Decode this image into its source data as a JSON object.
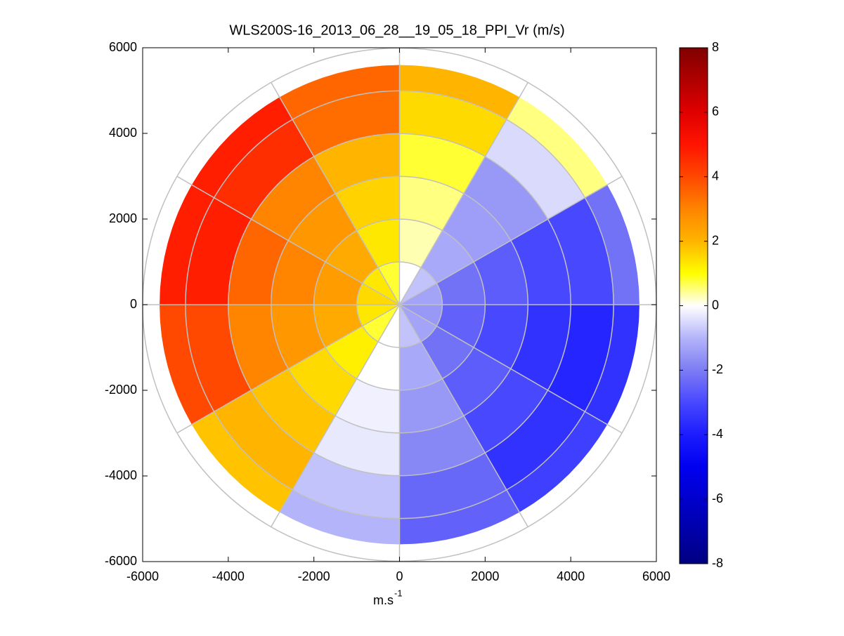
{
  "chart_data": {
    "type": "ppi",
    "title": "WLS200S-16_2013_06_28__19_05_18_PPI_Vr (m/s)",
    "xlabel": {
      "text": "m.s",
      "superscript": "-1"
    },
    "xlim": [
      -6000,
      6000
    ],
    "ylim": [
      -6000,
      6000
    ],
    "xticks": [
      -6000,
      -4000,
      -2000,
      0,
      2000,
      4000,
      6000
    ],
    "yticks": [
      -6000,
      -4000,
      -2000,
      0,
      2000,
      4000,
      6000
    ],
    "r_edges": [
      0,
      1000,
      2000,
      3000,
      4000,
      5000,
      5600
    ],
    "az_edges": [
      0,
      30,
      60,
      90,
      120,
      150,
      180,
      210,
      240,
      270,
      300,
      330,
      360
    ],
    "values": [
      [
        0,
        -0.8,
        -1.3,
        -1.5,
        -1.3,
        -0.8,
        0,
        0.8,
        1.3,
        1.5,
        1.3,
        0.8
      ],
      [
        0.3,
        -1.2,
        -2.2,
        -2.5,
        -2.2,
        -1.2,
        0,
        1.2,
        2.2,
        2.5,
        2.2,
        1.3
      ],
      [
        0.5,
        -1.4,
        -2.6,
        -3,
        -2.6,
        -1.5,
        -0.2,
        1.5,
        2.6,
        3,
        2.6,
        1.6
      ],
      [
        0.8,
        -1.5,
        -3,
        -3.5,
        -3,
        -1.8,
        -0.3,
        1.8,
        3,
        3.5,
        3,
        2
      ],
      [
        1.5,
        -0.5,
        -3,
        -3.8,
        -3.5,
        -2.4,
        -0.8,
        2,
        4,
        4.8,
        4.5,
        3.4
      ],
      [
        2,
        0.5,
        -2.2,
        -3.5,
        -3.2,
        -2.5,
        -1,
        1.8,
        4,
        4.8,
        4.8,
        3.5
      ]
    ],
    "polar_rings": [
      1000,
      2000,
      3000,
      4000,
      5000,
      6000
    ],
    "polar_spokes": [
      0,
      30,
      60,
      90,
      120,
      150,
      180,
      210,
      240,
      270,
      300,
      330
    ],
    "clim": [
      -8,
      8
    ],
    "cticks": [
      -8,
      -6,
      -4,
      -2,
      0,
      2,
      4,
      6,
      8
    ],
    "colormap": [
      "#000080",
      "#0000a8",
      "#0000cc",
      "#0000f0",
      "#1c1cff",
      "#4848ff",
      "#7c7cf4",
      "#b4b4fa",
      "#ffffff",
      "#ffff00",
      "#ffb400",
      "#ff8400",
      "#ff4800",
      "#ff1400",
      "#e00000",
      "#b00000",
      "#800000"
    ],
    "grid_color": "#c0c0c0"
  }
}
